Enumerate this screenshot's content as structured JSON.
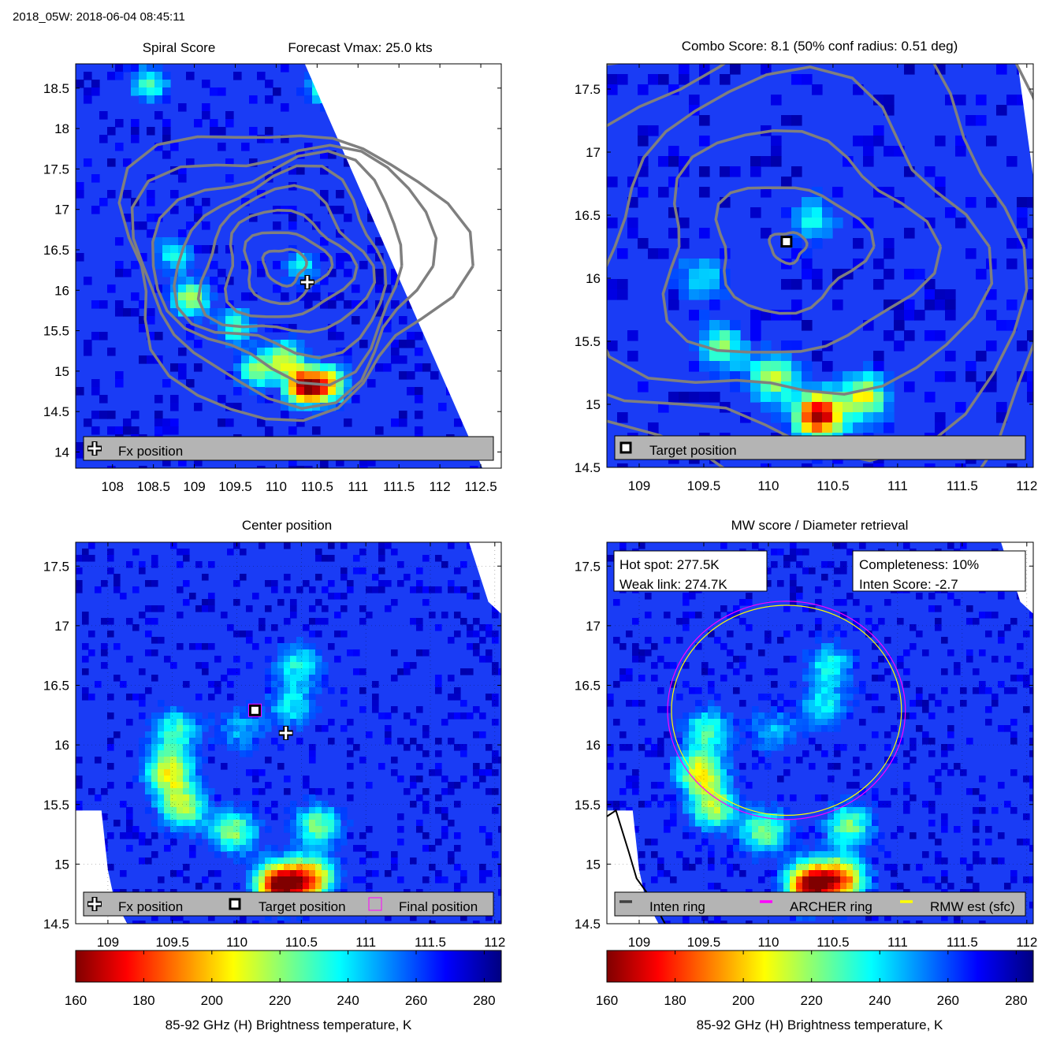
{
  "header": {
    "title": "2018_05W: 2018-06-04 08:45:11"
  },
  "colors": {
    "contour": "#7f7f7f",
    "legend_bg": "#b4b4b4",
    "archer": "#ff00ff",
    "rmw": "#ffff00",
    "inten": "#404040"
  },
  "chart_data": [
    {
      "id": "spiral",
      "type": "heatmap",
      "title": "Spiral Score",
      "subtitle": "Forecast Vmax: 25.0 kts",
      "xlim": [
        107.55,
        112.75
      ],
      "ylim": [
        13.8,
        18.8
      ],
      "xticks": [
        108,
        108.5,
        109,
        109.5,
        110,
        110.5,
        111,
        111.5,
        112,
        112.5
      ],
      "yticks": [
        14,
        14.5,
        15,
        15.5,
        16,
        16.5,
        17,
        17.5,
        18,
        18.5
      ],
      "hot_spots": [
        {
          "x": 110.3,
          "y": 14.85,
          "tb": 165
        },
        {
          "x": 110.05,
          "y": 15.2,
          "tb": 215
        },
        {
          "x": 109.7,
          "y": 15.05,
          "tb": 225
        },
        {
          "x": 110.6,
          "y": 14.9,
          "tb": 205
        },
        {
          "x": 108.9,
          "y": 15.95,
          "tb": 215
        },
        {
          "x": 108.7,
          "y": 16.5,
          "tb": 235
        },
        {
          "x": 108.4,
          "y": 18.6,
          "tb": 230
        },
        {
          "x": 110.55,
          "y": 18.55,
          "tb": 232
        },
        {
          "x": 110.25,
          "y": 16.35,
          "tb": 240
        },
        {
          "x": 109.45,
          "y": 15.6,
          "tb": 230
        }
      ],
      "markers": [
        {
          "type": "fx",
          "x": 110.38,
          "y": 16.1
        }
      ],
      "legend": [
        {
          "symbol": "fx",
          "label": "Fx position"
        }
      ]
    },
    {
      "id": "combo",
      "type": "heatmap",
      "title": "Combo Score: 8.1  (50% conf radius: 0.51 deg)",
      "xlim": [
        108.75,
        112.05
      ],
      "ylim": [
        14.5,
        17.7
      ],
      "xticks": [
        109,
        109.5,
        110,
        110.5,
        111,
        111.5,
        112
      ],
      "yticks": [
        14.5,
        15,
        15.5,
        16,
        16.5,
        17,
        17.5
      ],
      "hot_spots": [
        {
          "x": 110.35,
          "y": 14.95,
          "tb": 165
        },
        {
          "x": 110.0,
          "y": 15.25,
          "tb": 215
        },
        {
          "x": 109.6,
          "y": 15.5,
          "tb": 225
        },
        {
          "x": 110.7,
          "y": 15.1,
          "tb": 210
        },
        {
          "x": 109.45,
          "y": 16.05,
          "tb": 240
        },
        {
          "x": 110.3,
          "y": 16.5,
          "tb": 238
        }
      ],
      "markers": [
        {
          "type": "target",
          "x": 110.14,
          "y": 16.29
        }
      ],
      "legend": [
        {
          "symbol": "target",
          "label": "Target position"
        }
      ]
    },
    {
      "id": "center",
      "type": "heatmap",
      "title": "Center position",
      "xlim": [
        108.75,
        112.05
      ],
      "ylim": [
        14.5,
        17.7
      ],
      "xticks": [
        109,
        109.5,
        110,
        110.5,
        111,
        111.5,
        112
      ],
      "yticks": [
        14.5,
        15,
        15.5,
        16,
        16.5,
        17,
        17.5
      ],
      "hot_spots": [
        {
          "x": 110.3,
          "y": 14.85,
          "tb": 165
        },
        {
          "x": 110.55,
          "y": 14.9,
          "tb": 195
        },
        {
          "x": 109.95,
          "y": 15.3,
          "tb": 222
        },
        {
          "x": 109.55,
          "y": 15.5,
          "tb": 218
        },
        {
          "x": 109.45,
          "y": 15.8,
          "tb": 210
        },
        {
          "x": 109.5,
          "y": 16.15,
          "tb": 232
        },
        {
          "x": 110.6,
          "y": 15.35,
          "tb": 225
        },
        {
          "x": 110.45,
          "y": 16.7,
          "tb": 238
        },
        {
          "x": 110.4,
          "y": 16.35,
          "tb": 240
        },
        {
          "x": 110.0,
          "y": 16.15,
          "tb": 248
        }
      ],
      "markers": [
        {
          "type": "fx",
          "x": 110.38,
          "y": 16.1
        },
        {
          "type": "target",
          "x": 110.14,
          "y": 16.29
        },
        {
          "type": "final",
          "x": 110.14,
          "y": 16.29
        }
      ],
      "legend": [
        {
          "symbol": "fx",
          "label": "Fx position"
        },
        {
          "symbol": "target",
          "label": "Target position"
        },
        {
          "symbol": "final",
          "label": "Final position"
        }
      ]
    },
    {
      "id": "mw",
      "type": "heatmap",
      "title": "MW score / Diameter retrieval",
      "xlim": [
        108.75,
        112.05
      ],
      "ylim": [
        14.5,
        17.7
      ],
      "xticks": [
        109,
        109.5,
        110,
        110.5,
        111,
        111.5,
        112
      ],
      "yticks": [
        14.5,
        15,
        15.5,
        16,
        16.5,
        17,
        17.5
      ],
      "hot_spots": [
        {
          "x": 110.3,
          "y": 14.85,
          "tb": 165
        },
        {
          "x": 110.55,
          "y": 14.9,
          "tb": 195
        },
        {
          "x": 109.95,
          "y": 15.3,
          "tb": 222
        },
        {
          "x": 109.55,
          "y": 15.5,
          "tb": 218
        },
        {
          "x": 109.45,
          "y": 15.8,
          "tb": 210
        },
        {
          "x": 109.5,
          "y": 16.15,
          "tb": 232
        },
        {
          "x": 110.6,
          "y": 15.35,
          "tb": 225
        },
        {
          "x": 110.45,
          "y": 16.7,
          "tb": 238
        },
        {
          "x": 110.4,
          "y": 16.35,
          "tb": 240
        },
        {
          "x": 110.0,
          "y": 16.15,
          "tb": 248
        }
      ],
      "rings": {
        "center": [
          110.14,
          16.29
        ],
        "archer_radius_deg": 0.92,
        "rmw_radius_deg": 0.89
      },
      "textbox_left": [
        "Hot spot: 277.5K",
        "Weak link: 274.7K"
      ],
      "textbox_right": [
        "Completeness: 10%",
        "Inten Score: -2.7"
      ],
      "legend": [
        {
          "symbol": "inten",
          "label": "Inten ring"
        },
        {
          "symbol": "archer",
          "label": "ARCHER ring"
        },
        {
          "symbol": "rmw",
          "label": "RMW est (sfc)"
        }
      ]
    }
  ],
  "colorbar": {
    "ticks": [
      160,
      180,
      200,
      220,
      240,
      260,
      280
    ],
    "range": [
      160,
      285
    ],
    "label": "85-92 GHz (H) Brightness temperature, K"
  }
}
